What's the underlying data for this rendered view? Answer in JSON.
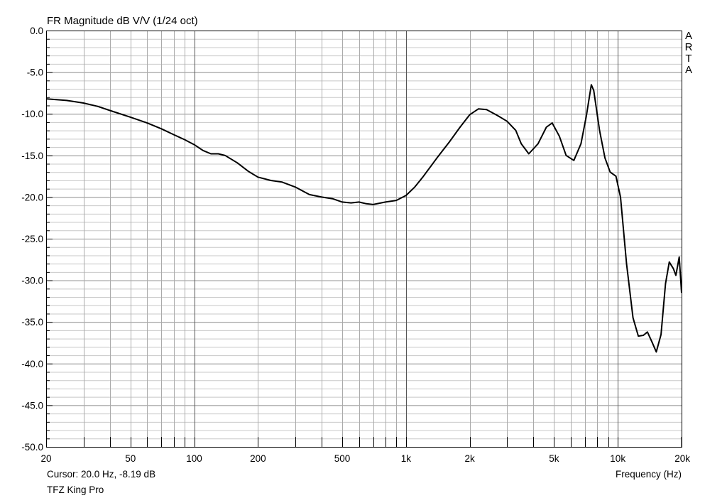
{
  "chart_data": {
    "type": "line",
    "title": "FR Magnitude dB V/V (1/24 oct)",
    "watermark": "ARTA",
    "xlabel": "Frequency (Hz)",
    "ylabel": "",
    "xscale": "log",
    "xlim": [
      20,
      20000
    ],
    "ylim": [
      -50,
      0
    ],
    "grid": true,
    "y_ticks": [
      {
        "v": 0,
        "label": "0.0"
      },
      {
        "v": -5,
        "label": "-5.0"
      },
      {
        "v": -10,
        "label": "-10.0"
      },
      {
        "v": -15,
        "label": "-15.0"
      },
      {
        "v": -20,
        "label": "-20.0"
      },
      {
        "v": -25,
        "label": "-25.0"
      },
      {
        "v": -30,
        "label": "-30.0"
      },
      {
        "v": -35,
        "label": "-35.0"
      },
      {
        "v": -40,
        "label": "-40.0"
      },
      {
        "v": -45,
        "label": "-45.0"
      },
      {
        "v": -50,
        "label": "-50.0"
      }
    ],
    "x_ticks": [
      {
        "v": 20,
        "label": "20"
      },
      {
        "v": 50,
        "label": "50"
      },
      {
        "v": 100,
        "label": "100"
      },
      {
        "v": 200,
        "label": "200"
      },
      {
        "v": 500,
        "label": "500"
      },
      {
        "v": 1000,
        "label": "1k"
      },
      {
        "v": 2000,
        "label": "2k"
      },
      {
        "v": 5000,
        "label": "5k"
      },
      {
        "v": 10000,
        "label": "10k"
      },
      {
        "v": 20000,
        "label": "20k"
      }
    ],
    "cursor_text": "Cursor: 20.0 Hz, -8.19 dB",
    "series": [
      {
        "name": "TFZ King Pro",
        "color": "#000000",
        "points": [
          [
            20,
            -8.2
          ],
          [
            25,
            -8.4
          ],
          [
            30,
            -8.7
          ],
          [
            35,
            -9.1
          ],
          [
            40,
            -9.6
          ],
          [
            50,
            -10.4
          ],
          [
            60,
            -11.1
          ],
          [
            70,
            -11.8
          ],
          [
            80,
            -12.5
          ],
          [
            90,
            -13.1
          ],
          [
            100,
            -13.7
          ],
          [
            110,
            -14.4
          ],
          [
            120,
            -14.8
          ],
          [
            130,
            -14.8
          ],
          [
            140,
            -15.0
          ],
          [
            160,
            -15.9
          ],
          [
            180,
            -16.9
          ],
          [
            200,
            -17.6
          ],
          [
            230,
            -18.0
          ],
          [
            260,
            -18.2
          ],
          [
            300,
            -18.8
          ],
          [
            350,
            -19.7
          ],
          [
            400,
            -20.0
          ],
          [
            450,
            -20.2
          ],
          [
            500,
            -20.6
          ],
          [
            550,
            -20.7
          ],
          [
            600,
            -20.6
          ],
          [
            650,
            -20.8
          ],
          [
            700,
            -20.9
          ],
          [
            800,
            -20.6
          ],
          [
            900,
            -20.4
          ],
          [
            1000,
            -19.8
          ],
          [
            1100,
            -18.8
          ],
          [
            1200,
            -17.6
          ],
          [
            1400,
            -15.3
          ],
          [
            1600,
            -13.4
          ],
          [
            1800,
            -11.6
          ],
          [
            2000,
            -10.1
          ],
          [
            2200,
            -9.4
          ],
          [
            2400,
            -9.5
          ],
          [
            2700,
            -10.2
          ],
          [
            3000,
            -10.9
          ],
          [
            3300,
            -12.0
          ],
          [
            3500,
            -13.6
          ],
          [
            3800,
            -14.8
          ],
          [
            4200,
            -13.6
          ],
          [
            4600,
            -11.6
          ],
          [
            4900,
            -11.1
          ],
          [
            5300,
            -12.7
          ],
          [
            5700,
            -15.0
          ],
          [
            6200,
            -15.6
          ],
          [
            6700,
            -13.6
          ],
          [
            7100,
            -10.3
          ],
          [
            7500,
            -6.5
          ],
          [
            7700,
            -7.2
          ],
          [
            8200,
            -12.0
          ],
          [
            8700,
            -15.3
          ],
          [
            9200,
            -17.0
          ],
          [
            9800,
            -17.5
          ],
          [
            10300,
            -20.0
          ],
          [
            11000,
            -28.0
          ],
          [
            11800,
            -34.5
          ],
          [
            12500,
            -36.7
          ],
          [
            13200,
            -36.6
          ],
          [
            13800,
            -36.2
          ],
          [
            14500,
            -37.4
          ],
          [
            15200,
            -38.6
          ],
          [
            16000,
            -36.5
          ],
          [
            16800,
            -30.4
          ],
          [
            17500,
            -27.8
          ],
          [
            18300,
            -28.6
          ],
          [
            18800,
            -29.4
          ],
          [
            19500,
            -27.2
          ],
          [
            20000,
            -31.5
          ]
        ]
      }
    ]
  }
}
